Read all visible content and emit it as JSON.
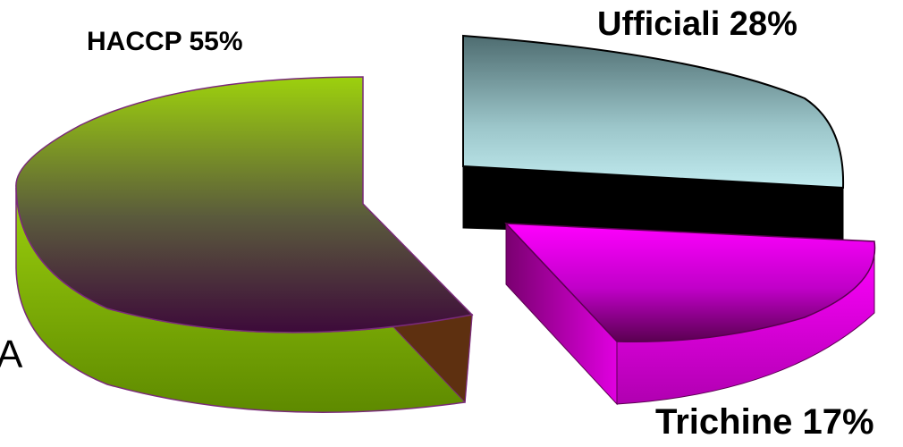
{
  "chart_data": {
    "type": "pie",
    "title": "",
    "slices": [
      {
        "name": "HACCP",
        "label": "HACCP 55%",
        "value": 55,
        "color_top": "#9dd10d",
        "color_dark": "#3d0a3a",
        "color_side": "#6aa000"
      },
      {
        "name": "Ufficiali",
        "label": "Ufficiali 28%",
        "value": 28,
        "color_top": "#c2ecf0",
        "color_dark": "#506e72",
        "color_side": "#000000"
      },
      {
        "name": "Trichine",
        "label": "Trichine 17%",
        "value": 17,
        "color_top": "#ff00ff",
        "color_dark": "#5a0050",
        "color_side": "#c000b0"
      }
    ],
    "legend": "none",
    "style": "3d-exploded"
  },
  "edge_fragment": "A"
}
